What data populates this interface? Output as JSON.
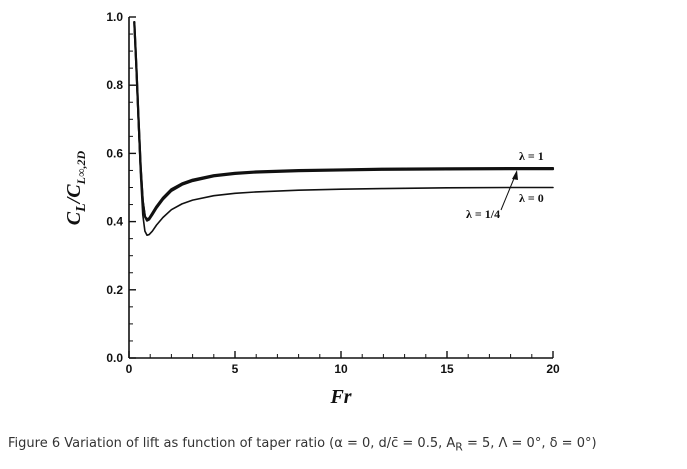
{
  "chart_data": {
    "type": "line",
    "xlabel": "Fr",
    "ylabel_main": "C",
    "ylabel_main_sub": "L",
    "ylabel_den": "C",
    "ylabel_den_sub": "L∞,2D",
    "xlim": [
      0,
      20
    ],
    "ylim": [
      0.0,
      1.0
    ],
    "xticks": [
      0,
      5,
      10,
      15,
      20
    ],
    "xtick_labels": [
      "0",
      "5",
      "10",
      "15",
      "20"
    ],
    "yticks": [
      0.0,
      0.2,
      0.4,
      0.6,
      0.8,
      1.0
    ],
    "ytick_labels": [
      "0.0",
      "0.2",
      "0.4",
      "0.6",
      "0.8",
      "1.0"
    ],
    "grid": false,
    "series": [
      {
        "name": "λ = 1",
        "color": "#111111",
        "x": [
          0.25,
          0.35,
          0.45,
          0.55,
          0.65,
          0.75,
          0.85,
          0.95,
          1.1,
          1.3,
          1.6,
          2.0,
          2.5,
          3.0,
          4.0,
          5.0,
          6.0,
          8.0,
          10.0,
          12.0,
          15.0,
          18.0,
          20.0
        ],
        "y": [
          0.985,
          0.85,
          0.7,
          0.56,
          0.46,
          0.415,
          0.407,
          0.41,
          0.425,
          0.445,
          0.47,
          0.495,
          0.512,
          0.523,
          0.536,
          0.543,
          0.547,
          0.551,
          0.553,
          0.555,
          0.556,
          0.557,
          0.557
        ]
      },
      {
        "name": "λ = 1/4",
        "color": "#111111",
        "x": [
          0.25,
          0.35,
          0.45,
          0.55,
          0.65,
          0.75,
          0.85,
          0.95,
          1.1,
          1.3,
          1.6,
          2.0,
          2.5,
          3.0,
          4.0,
          5.0,
          6.0,
          8.0,
          10.0,
          12.0,
          15.0,
          18.0,
          20.0
        ],
        "y": [
          0.985,
          0.85,
          0.7,
          0.56,
          0.46,
          0.415,
          0.403,
          0.406,
          0.42,
          0.44,
          0.465,
          0.49,
          0.508,
          0.519,
          0.533,
          0.54,
          0.544,
          0.548,
          0.55,
          0.552,
          0.553,
          0.554,
          0.554
        ]
      },
      {
        "name": "λ = 0",
        "color": "#111111",
        "x": [
          0.25,
          0.35,
          0.45,
          0.55,
          0.65,
          0.75,
          0.85,
          0.95,
          1.1,
          1.3,
          1.6,
          2.0,
          2.5,
          3.0,
          4.0,
          5.0,
          6.0,
          8.0,
          10.0,
          12.0,
          15.0,
          18.0,
          20.0
        ],
        "y": [
          0.985,
          0.84,
          0.68,
          0.53,
          0.42,
          0.372,
          0.36,
          0.362,
          0.372,
          0.39,
          0.412,
          0.435,
          0.452,
          0.463,
          0.476,
          0.483,
          0.487,
          0.492,
          0.495,
          0.497,
          0.499,
          0.5,
          0.5
        ]
      }
    ],
    "annotations": [
      {
        "text": "λ = 1",
        "series": 0
      },
      {
        "text": "λ = 0",
        "series": 2
      },
      {
        "text": "λ = 1/4",
        "series": 1
      }
    ]
  },
  "caption": {
    "text": "Figure 6 Variation of lift as function of taper ratio (α = 0, d/c̄ = 0.5, A",
    "sub": "R",
    "rest": " = 5, Λ = 0°, δ = 0°)"
  }
}
